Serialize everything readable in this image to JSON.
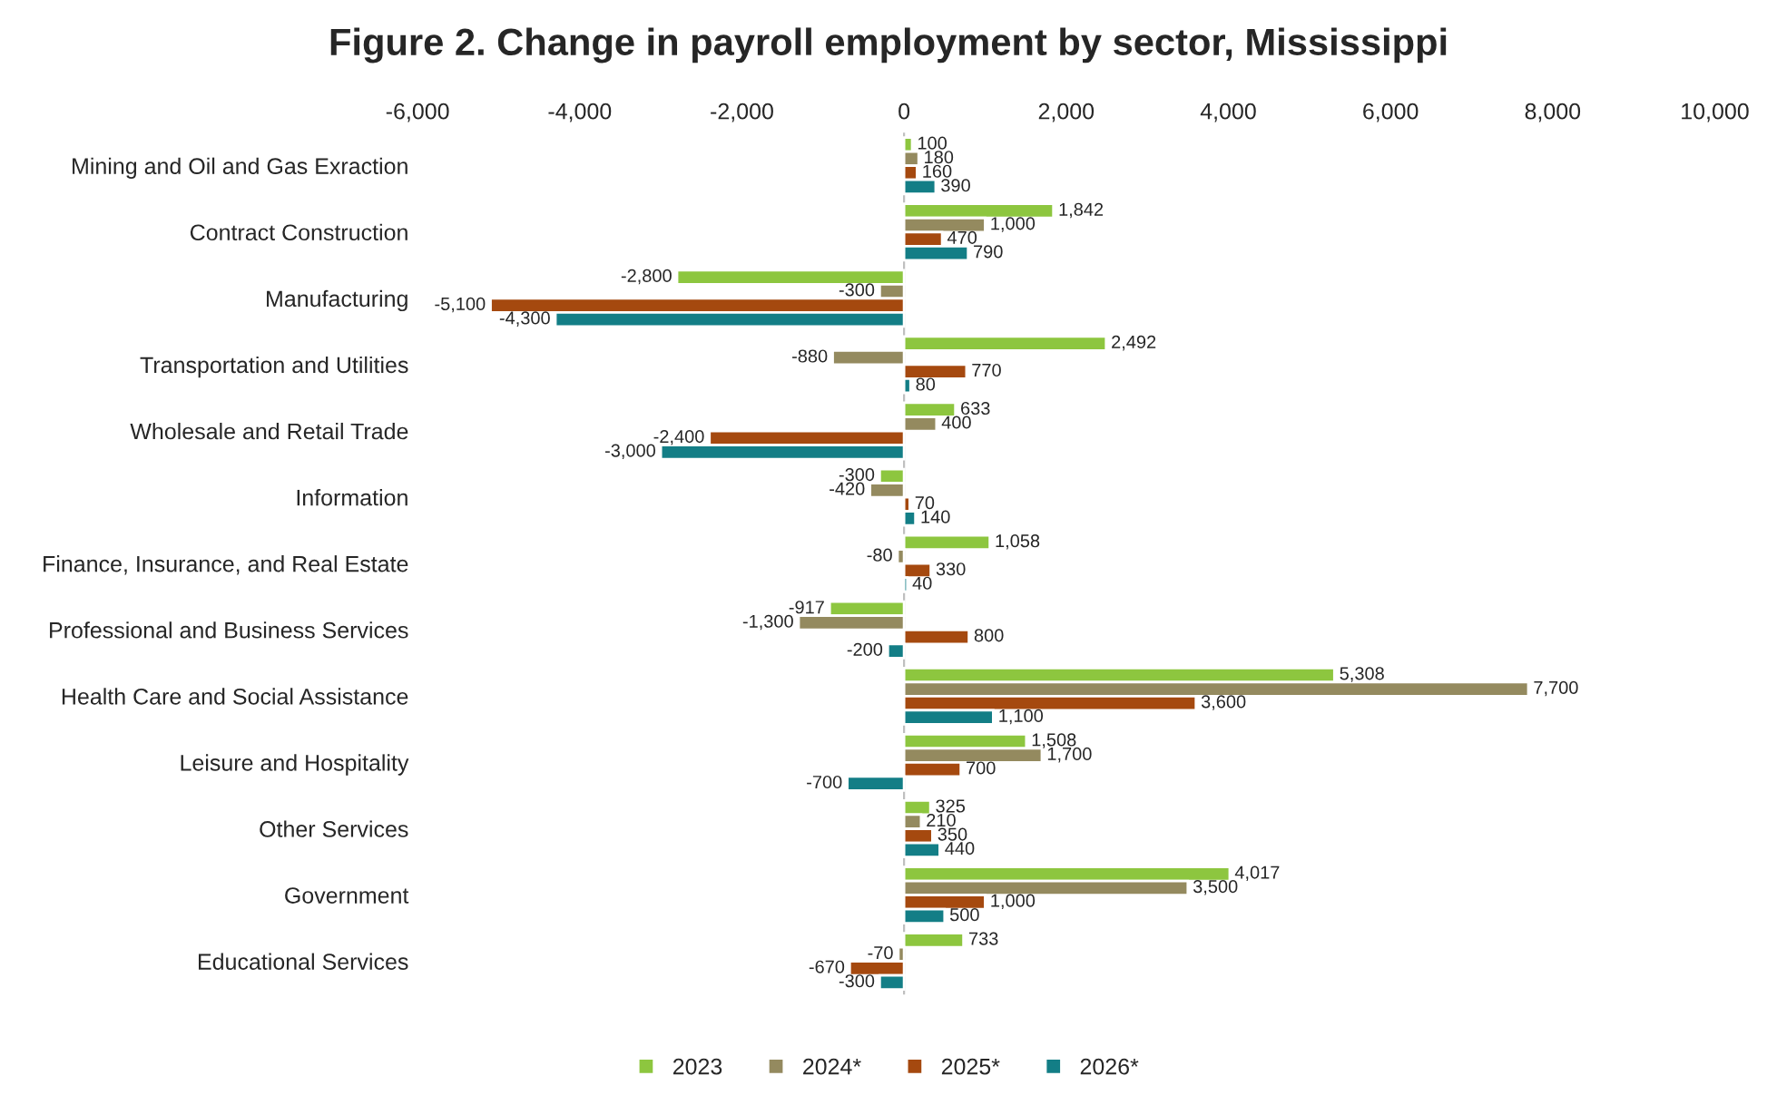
{
  "chart_data": {
    "type": "bar",
    "orientation": "horizontal",
    "title": "Figure 2. Change in payroll employment by sector, Mississippi",
    "categories": [
      "Mining and Oil and Gas Exraction",
      "Contract Construction",
      "Manufacturing",
      "Transportation and Utilities",
      "Wholesale and Retail Trade",
      "Information",
      "Finance, Insurance, and Real Estate",
      "Professional and Business Services",
      "Health Care and Social Assistance",
      "Leisure and Hospitality",
      "Other Services",
      "Government",
      "Educational Services"
    ],
    "series": [
      {
        "name": "2023",
        "color": "#8dc63f",
        "values": [
          100,
          1842,
          -2800,
          2492,
          633,
          -300,
          1058,
          -917,
          5308,
          1508,
          325,
          4017,
          733
        ],
        "value_labels": [
          "100",
          "1,842",
          "-2,800",
          "2,492",
          "633",
          "-300",
          "1,058",
          "-917",
          "5,308",
          "1,508",
          "325",
          "4,017",
          "733"
        ]
      },
      {
        "name": "2024*",
        "color": "#948a5f",
        "values": [
          180,
          1000,
          -300,
          -880,
          400,
          -420,
          -80,
          -1300,
          7700,
          1700,
          210,
          3500,
          -70
        ],
        "value_labels": [
          "180",
          "1,000",
          "-300",
          "-880",
          "400",
          "-420",
          "-80",
          "-1,300",
          "7,700",
          "1,700",
          "210",
          "3,500",
          "-70"
        ]
      },
      {
        "name": "2025*",
        "color": "#a5490f",
        "values": [
          160,
          470,
          -5100,
          770,
          -2400,
          70,
          330,
          800,
          3600,
          700,
          350,
          1000,
          -670
        ],
        "value_labels": [
          "160",
          "470",
          "-5,100",
          "770",
          "-2,400",
          "70",
          "330",
          "800",
          "3,600",
          "700",
          "350",
          "1,000",
          "-670"
        ]
      },
      {
        "name": "2026*",
        "color": "#137e86",
        "values": [
          390,
          790,
          -4300,
          80,
          -3000,
          140,
          40,
          -200,
          1100,
          -700,
          440,
          500,
          -300
        ],
        "value_labels": [
          "390",
          "790",
          "-4,300",
          "80",
          "-3,000",
          "140",
          "40",
          "-200",
          "1,100",
          "-700",
          "440",
          "500",
          "-300"
        ]
      }
    ],
    "xlim": [
      -6000,
      10000
    ],
    "xticks": [
      {
        "value": -6000,
        "label": "-6,000"
      },
      {
        "value": -4000,
        "label": "-4,000"
      },
      {
        "value": -2000,
        "label": "-2,000"
      },
      0,
      {
        "value": 2000,
        "label": "2,000"
      },
      {
        "value": 4000,
        "label": "4,000"
      },
      {
        "value": 6000,
        "label": "6,000"
      },
      {
        "value": 8000,
        "label": "8,000"
      },
      {
        "value": 10000,
        "label": "10,000"
      }
    ],
    "ref_lines": [
      {
        "axis": "x",
        "value": 0,
        "color": "#bfbfbf"
      }
    ],
    "legend": "bottom"
  }
}
